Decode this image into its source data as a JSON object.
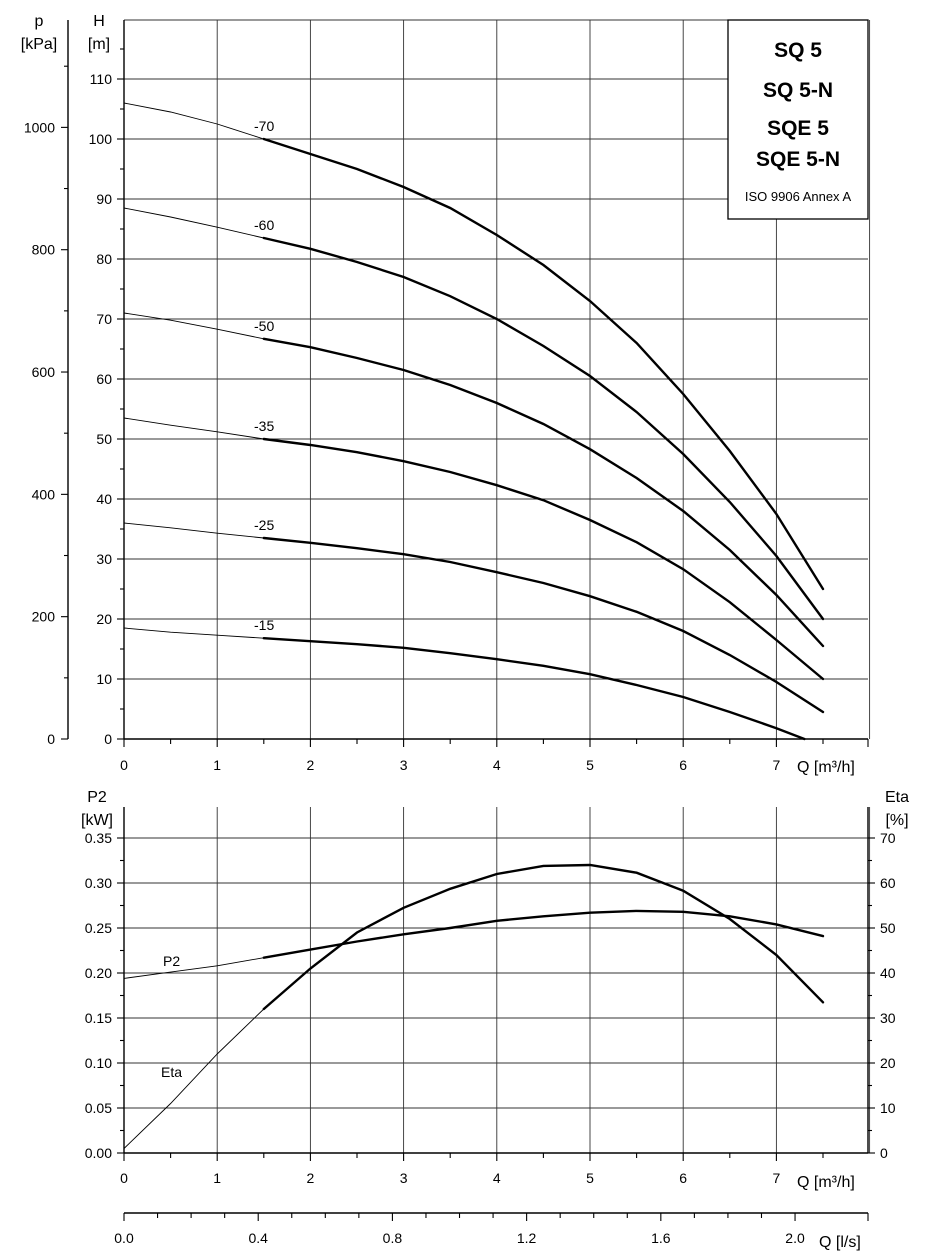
{
  "chart_data": [
    {
      "type": "line",
      "panel": "head",
      "legend_box": {
        "lines": [
          "SQ 5",
          "SQ 5-N",
          "SQE 5",
          "SQE 5-N"
        ],
        "standard": "ISO 9906 Annex A",
        "placement": "top-right"
      },
      "left_outer_axis": {
        "label_top": "p",
        "label_unit": "[kPa]",
        "ticks": [
          0,
          200,
          400,
          600,
          800,
          1000
        ]
      },
      "left_inner_axis": {
        "label_top": "H",
        "label_unit": "[m]",
        "ticks": [
          0,
          10,
          20,
          30,
          40,
          50,
          60,
          70,
          80,
          90,
          100,
          110
        ],
        "ylim": [
          0,
          120
        ]
      },
      "x_axis": {
        "label": "Q [m³/h]",
        "ticks": [
          0,
          1,
          2,
          3,
          4,
          5,
          6,
          7
        ],
        "xlim": [
          0,
          8
        ]
      },
      "grid": true,
      "thin_segment_end_x": 1.5,
      "series": [
        {
          "name": "-70",
          "x": [
            0,
            0.5,
            1,
            1.5,
            2,
            2.5,
            3,
            3.5,
            4,
            4.5,
            5,
            5.5,
            6,
            6.5,
            7,
            7.5
          ],
          "values": [
            106,
            104.5,
            102.5,
            100,
            97.5,
            95,
            92,
            88.5,
            84,
            79,
            73,
            66,
            57.5,
            48,
            37.5,
            25
          ]
        },
        {
          "name": "-60",
          "x": [
            0,
            0.5,
            1,
            1.5,
            2,
            2.5,
            3,
            3.5,
            4,
            4.5,
            5,
            5.5,
            6,
            6.5,
            7,
            7.5
          ],
          "values": [
            88.5,
            87,
            85.3,
            83.5,
            81.7,
            79.5,
            77,
            73.8,
            70,
            65.5,
            60.5,
            54.5,
            47.5,
            39.5,
            30.5,
            20
          ]
        },
        {
          "name": "-50",
          "x": [
            0,
            0.5,
            1,
            1.5,
            2,
            2.5,
            3,
            3.5,
            4,
            4.5,
            5,
            5.5,
            6,
            6.5,
            7,
            7.5
          ],
          "values": [
            71,
            69.8,
            68.3,
            66.7,
            65.3,
            63.5,
            61.5,
            59,
            56,
            52.5,
            48.3,
            43.5,
            38,
            31.5,
            24,
            15.5
          ]
        },
        {
          "name": "-35",
          "x": [
            0,
            0.5,
            1,
            1.5,
            2,
            2.5,
            3,
            3.5,
            4,
            4.5,
            5,
            5.5,
            6,
            6.5,
            7,
            7.5
          ],
          "values": [
            53.5,
            52.3,
            51.2,
            50,
            49,
            47.8,
            46.3,
            44.5,
            42.3,
            39.8,
            36.5,
            32.8,
            28.3,
            22.8,
            16.5,
            10
          ]
        },
        {
          "name": "-25",
          "x": [
            0,
            0.5,
            1,
            1.5,
            2,
            2.5,
            3,
            3.5,
            4,
            4.5,
            5,
            5.5,
            6,
            6.5,
            7,
            7.5
          ],
          "values": [
            36,
            35.2,
            34.3,
            33.5,
            32.7,
            31.8,
            30.8,
            29.5,
            27.8,
            26,
            23.8,
            21.2,
            18,
            14,
            9.5,
            4.5
          ]
        },
        {
          "name": "-15",
          "x": [
            0,
            0.5,
            1,
            1.5,
            2,
            2.5,
            3,
            3.5,
            4,
            4.5,
            5,
            5.5,
            6,
            6.5,
            7,
            7.3
          ],
          "values": [
            18.5,
            17.8,
            17.3,
            16.8,
            16.3,
            15.8,
            15.2,
            14.3,
            13.3,
            12.2,
            10.8,
            9,
            7,
            4.5,
            1.8,
            0
          ]
        }
      ]
    },
    {
      "type": "line",
      "panel": "power_efficiency",
      "left_axis": {
        "label_top": "P2",
        "label_unit": "[kW]",
        "ticks": [
          "0.00",
          "0.05",
          "0.10",
          "0.15",
          "0.20",
          "0.25",
          "0.30",
          "0.35"
        ],
        "ylim": [
          0,
          0.35
        ]
      },
      "right_axis": {
        "label_top": "Eta",
        "label_unit": "[%]",
        "ticks": [
          0,
          10,
          20,
          30,
          40,
          50,
          60,
          70
        ],
        "ylim": [
          0,
          70
        ]
      },
      "x_axis": {
        "label": "Q [m³/h]",
        "ticks": [
          0,
          1,
          2,
          3,
          4,
          5,
          6,
          7
        ],
        "xlim": [
          0,
          8
        ]
      },
      "grid": true,
      "thin_segment_end_x": 1.5,
      "series": [
        {
          "name": "P2",
          "label_at_x": 0.5,
          "axis": "left",
          "x": [
            0,
            0.5,
            1,
            1.5,
            2,
            2.5,
            3,
            3.5,
            4,
            4.5,
            5,
            5.5,
            6,
            6.5,
            7,
            7.5
          ],
          "values": [
            0.194,
            0.201,
            0.208,
            0.217,
            0.226,
            0.235,
            0.243,
            0.25,
            0.258,
            0.263,
            0.267,
            0.269,
            0.268,
            0.263,
            0.254,
            0.241
          ]
        },
        {
          "name": "Eta",
          "label_at_x": 0.5,
          "axis": "right",
          "x": [
            0,
            0.5,
            1,
            1.5,
            2,
            2.5,
            3,
            3.5,
            4,
            4.5,
            5,
            5.5,
            6,
            6.5,
            7,
            7.5
          ],
          "values": [
            1,
            11,
            22,
            32,
            41,
            49,
            54.5,
            58.7,
            62,
            63.8,
            64,
            62.3,
            58.3,
            52,
            44,
            33.5
          ]
        }
      ],
      "secondary_x_axis": {
        "label": "Q [l/s]",
        "ticks": [
          "0.0",
          "0.4",
          "0.8",
          "1.2",
          "1.6",
          "2.0"
        ],
        "values": [
          0,
          0.4,
          0.8,
          1.2,
          1.6,
          2.0
        ],
        "conversion_m3h_per_ls": 3.6
      }
    }
  ]
}
